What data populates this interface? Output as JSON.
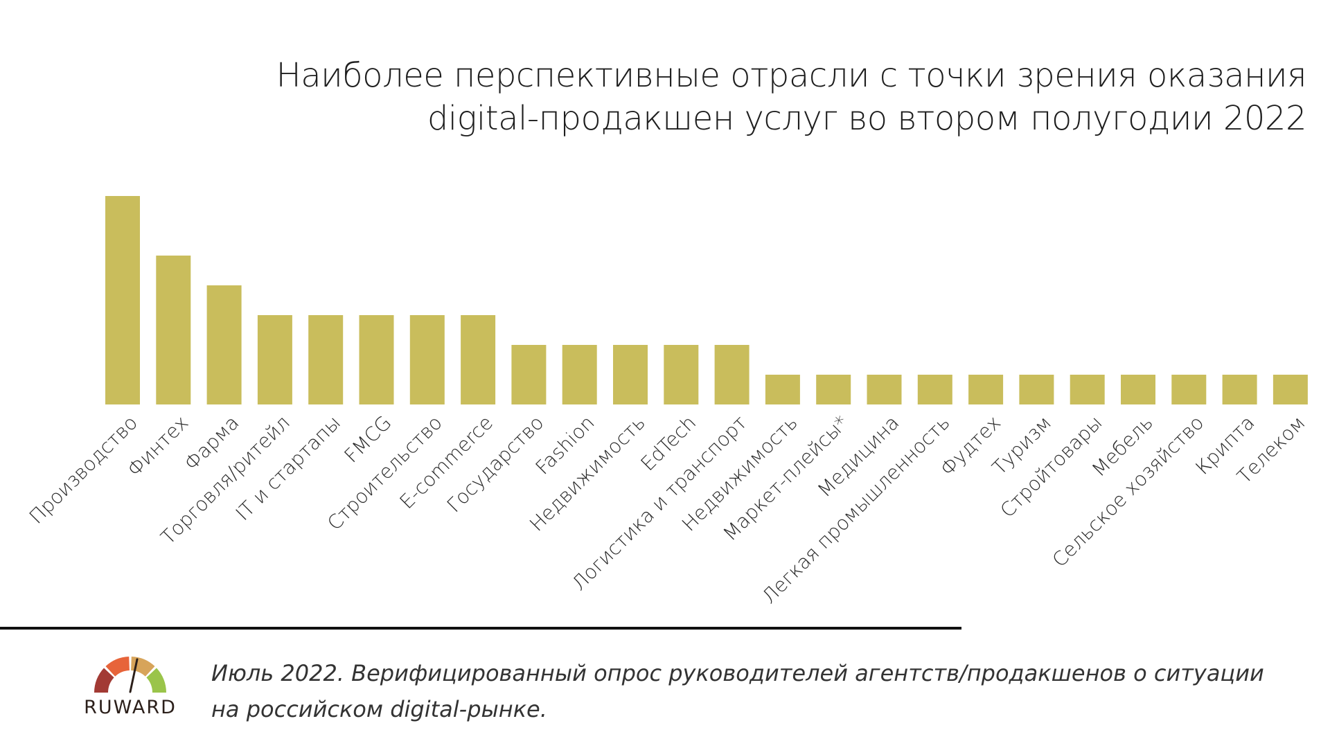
{
  "chart_data": {
    "type": "bar",
    "title": "Наиболее перспективные отрасли с точки зрения оказания digital-продакшен услуг во втором полугодии 2022",
    "title_lines": [
      "Наиболее перспективные отрасли с точки зрения оказания",
      "digital-продакшен услуг во втором полугодии 2022"
    ],
    "categories": [
      "Производство",
      "Финтех",
      "Фарма",
      "Торговля/ритейл",
      "IT и стартапы",
      "FMCG",
      "Строительство",
      "E-commerce",
      "Государство",
      "Fashion",
      "Недвижимость",
      "EdTech",
      "Логистика и транспорт",
      "Недвижимость",
      "Маркет-плейсы*",
      "Медицина",
      "Легкая промышленность",
      "Фудтех",
      "Туризм",
      "Стройтовары",
      "Мебель",
      "Сельское хозяйство",
      "Крипта",
      "Телеком"
    ],
    "values": [
      7,
      5,
      4,
      3,
      3,
      3,
      3,
      3,
      2,
      2,
      2,
      2,
      2,
      1,
      1,
      1,
      1,
      1,
      1,
      1,
      1,
      1,
      1,
      1
    ],
    "ylim": [
      0,
      7
    ],
    "grid": false,
    "legend": "none",
    "bar_color": "#c9bd5c",
    "xlabel": "",
    "ylabel": ""
  },
  "footer": {
    "logo_text": "RUWARD",
    "note_lines": [
      "Июль 2022. Верифицированный опрос руководителей агентств/продакшенов о ситуации",
      "на российском digital-рынке."
    ]
  },
  "colors": {
    "bar": "#c9bd5c",
    "divider": "#111111",
    "gauge_dark_red": "#a23a34",
    "gauge_orange": "#e7643a",
    "gauge_sand": "#d7a45a",
    "gauge_green": "#9ac44a"
  }
}
